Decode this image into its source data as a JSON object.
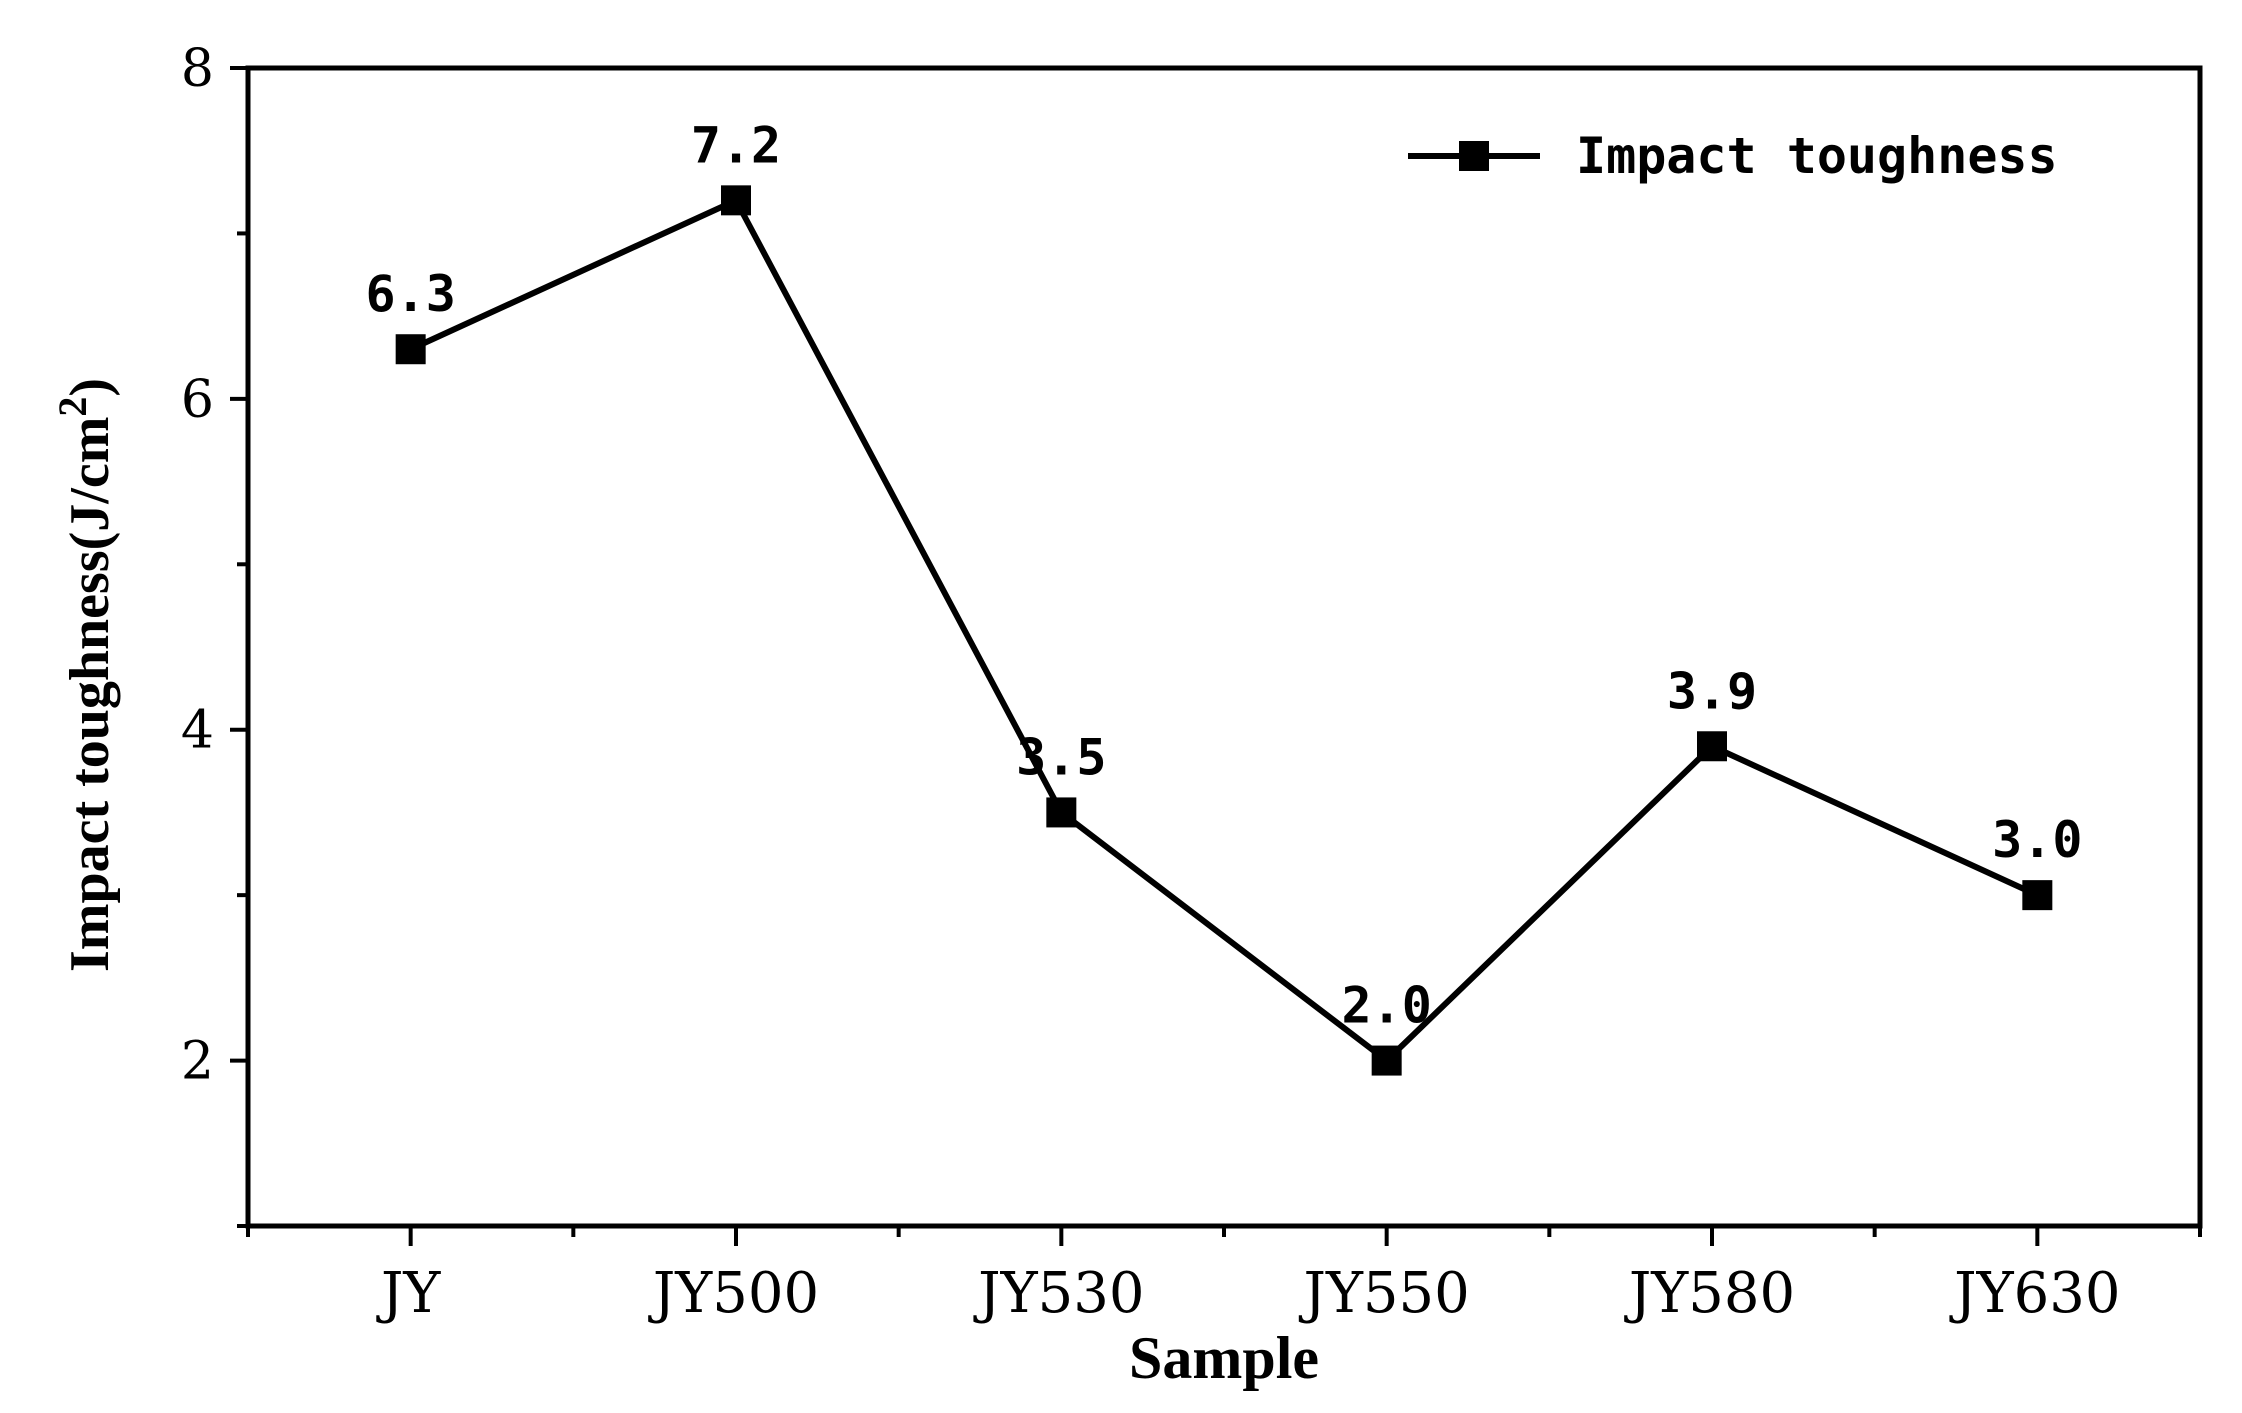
{
  "chart_data": {
    "type": "line",
    "title": "",
    "xlabel": "Sample",
    "ylabel_main": "Impact toughness(J/cm",
    "ylabel_superscript": "2",
    "ylabel_close": ")",
    "categories": [
      "JY",
      "JY500",
      "JY530",
      "JY550",
      "JY580",
      "JY630"
    ],
    "series": [
      {
        "name": "Impact toughness",
        "values": [
          6.3,
          7.2,
          3.5,
          2.0,
          3.9,
          3.0
        ],
        "data_labels": [
          "6.3",
          "7.2",
          "3.5",
          "2.0",
          "3.9",
          "3.0"
        ],
        "color": "#000000",
        "marker": "square"
      }
    ],
    "ylim": [
      1,
      8
    ],
    "yticks": [
      2,
      4,
      6,
      8
    ],
    "ytick_labels": [
      "2",
      "4",
      "6",
      "8"
    ],
    "grid": false,
    "legend_position": "top-right"
  }
}
